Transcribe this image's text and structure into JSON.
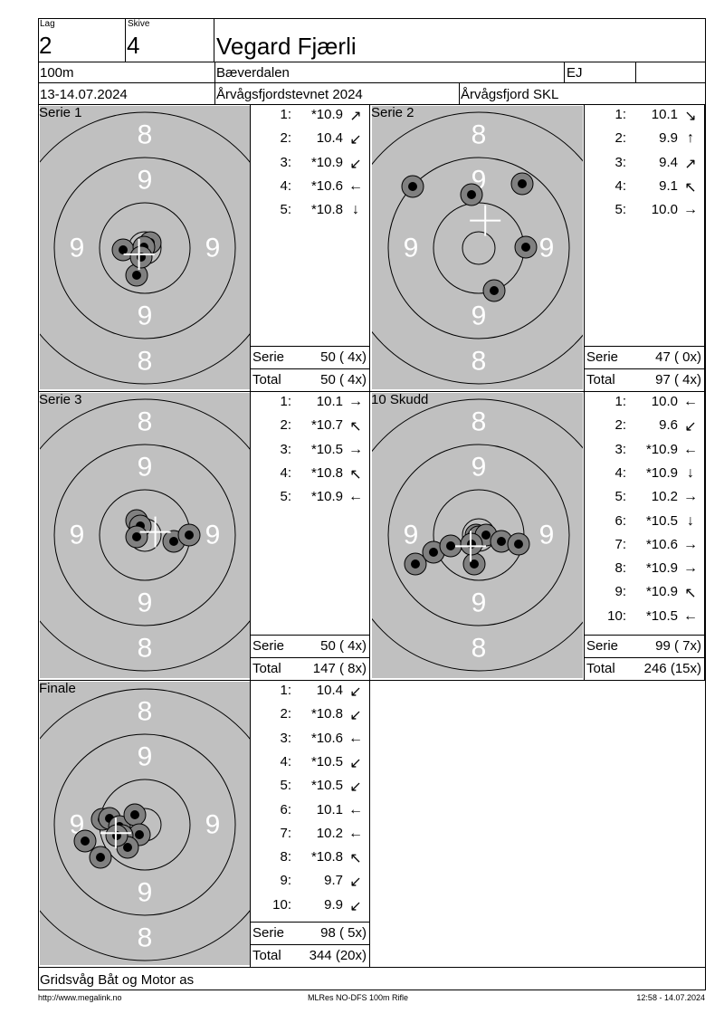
{
  "header": {
    "lag_label": "Lag",
    "lag": "2",
    "skive_label": "Skive",
    "skive": "4",
    "name": "Vegard Fjærli",
    "distance": "100m",
    "club": "Bæverdalen",
    "class": "EJ",
    "extra": "",
    "date": "13-14.07.2024",
    "event": "Årvågsfjordstevnet 2024",
    "organizer": "Årvågsfjord SKL"
  },
  "target_labels": {
    "inner": "9",
    "outer": "8"
  },
  "panels": [
    {
      "title": "Serie 1",
      "shots": [
        [
          "1:",
          "*10.9",
          "↗"
        ],
        [
          "2:",
          "10.4",
          "↙"
        ],
        [
          "3:",
          "*10.9",
          "↙"
        ],
        [
          "4:",
          "*10.6",
          "←"
        ],
        [
          "5:",
          "*10.8",
          "↓"
        ]
      ],
      "serie_label": "Serie",
      "serie": "50 ( 4x)",
      "total_label": "Total",
      "total": "50 ( 4x)"
    },
    {
      "title": "Serie 2",
      "shots": [
        [
          "1:",
          "10.1",
          "↘"
        ],
        [
          "2:",
          "9.9",
          "↑"
        ],
        [
          "3:",
          "9.4",
          "↗"
        ],
        [
          "4:",
          "9.1",
          "↖"
        ],
        [
          "5:",
          "10.0",
          "→"
        ]
      ],
      "serie_label": "Serie",
      "serie": "47 ( 0x)",
      "total_label": "Total",
      "total": "97 ( 4x)"
    },
    {
      "title": "Serie 3",
      "shots": [
        [
          "1:",
          "10.1",
          "→"
        ],
        [
          "2:",
          "*10.7",
          "↖"
        ],
        [
          "3:",
          "*10.5",
          "→"
        ],
        [
          "4:",
          "*10.8",
          "↖"
        ],
        [
          "5:",
          "*10.9",
          "←"
        ]
      ],
      "serie_label": "Serie",
      "serie": "50 ( 4x)",
      "total_label": "Total",
      "total": "147 ( 8x)"
    },
    {
      "title": "10 Skudd",
      "shots": [
        [
          "1:",
          "10.0",
          "←"
        ],
        [
          "2:",
          "9.6",
          "↙"
        ],
        [
          "3:",
          "*10.9",
          "←"
        ],
        [
          "4:",
          "*10.9",
          "↓"
        ],
        [
          "5:",
          "10.2",
          "→"
        ],
        [
          "6:",
          "*10.5",
          "↓"
        ],
        [
          "7:",
          "*10.6",
          "→"
        ],
        [
          "8:",
          "*10.9",
          "→"
        ],
        [
          "9:",
          "*10.9",
          "↖"
        ],
        [
          "10:",
          "*10.5",
          "←"
        ]
      ],
      "serie_label": "Serie",
      "serie": "99 ( 7x)",
      "total_label": "Total",
      "total": "246 (15x)"
    },
    {
      "title": "Finale",
      "shots": [
        [
          "1:",
          "10.4",
          "↙"
        ],
        [
          "2:",
          "*10.8",
          "↙"
        ],
        [
          "3:",
          "*10.6",
          "←"
        ],
        [
          "4:",
          "*10.5",
          "↙"
        ],
        [
          "5:",
          "*10.5",
          "↙"
        ],
        [
          "6:",
          "10.1",
          "←"
        ],
        [
          "7:",
          "10.2",
          "←"
        ],
        [
          "8:",
          "*10.8",
          "↖"
        ],
        [
          "9:",
          "9.7",
          "↙"
        ],
        [
          "10:",
          "9.9",
          "↙"
        ]
      ],
      "serie_label": "Serie",
      "serie": "98 ( 5x)",
      "total_label": "Total",
      "total": "344 (20x)"
    }
  ],
  "footer": {
    "sponsor": "Gridsvåg Båt og Motor as",
    "url": "http://www.megalink.no",
    "software": "MLRes NO-DFS 100m Rifle",
    "timestamp": "12:58 - 14.07.2024"
  },
  "colors": {
    "target_bg": "#c0c0c0",
    "ring_label": "#ffffff",
    "shot_outer": "#808080"
  }
}
